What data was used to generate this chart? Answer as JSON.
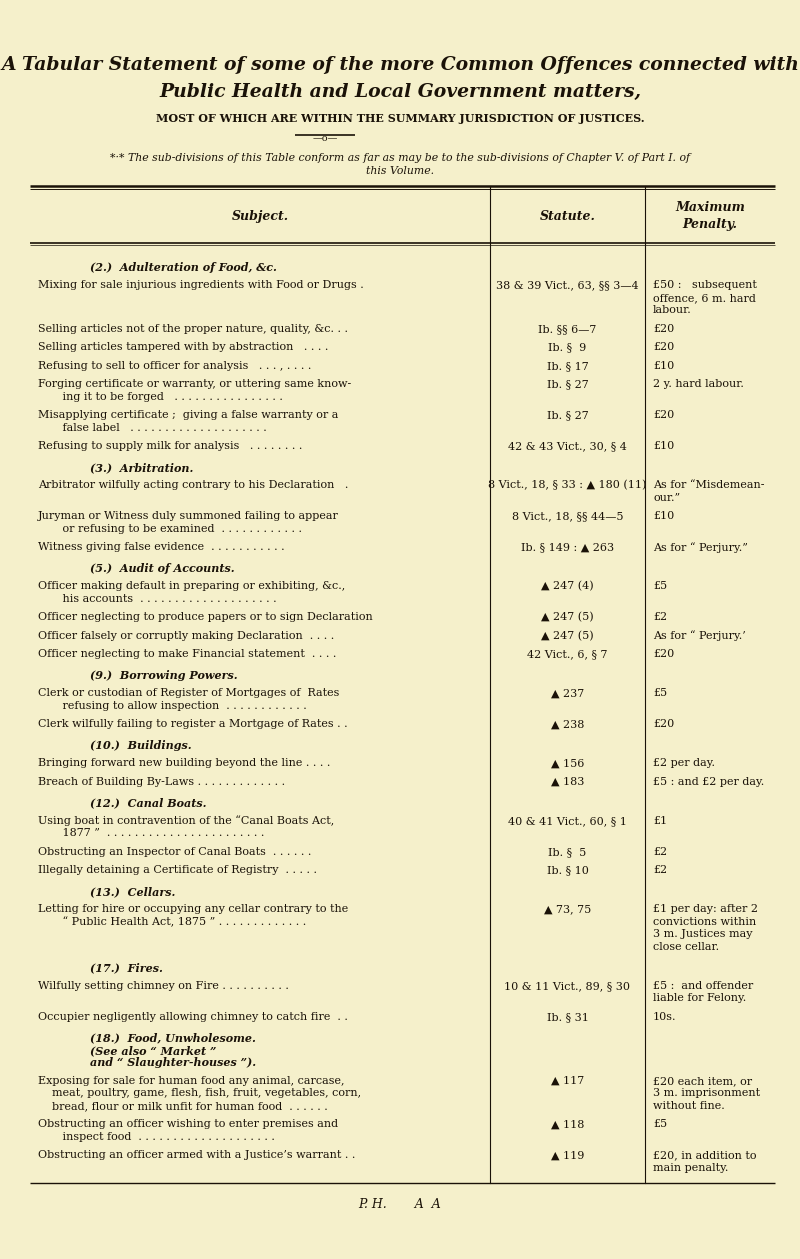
{
  "bg_color": "#f5f0cb",
  "title_line1": "A Tabular Statement of some of the more Common Offences connected with",
  "title_line2": "Public Health and Local Government matters,",
  "subtitle": "MOST OF WHICH ARE WITHIN THE SUMMARY JURISDICTION OF JUSTICES.",
  "footnote_line1": "*·* The sub-divisions of this Table conform as far as may be to the sub-divisions of Chapter V. of Part I. of",
  "footnote_line2": "this Volume.",
  "col_header1": "Subject.",
  "col_header2": "Statute.",
  "col_header3": "Maximum\nPenalty.",
  "rows": [
    {
      "subject": "(2.)  Adulteration of Food, &c.",
      "statute": "",
      "penalty": "",
      "type": "section"
    },
    {
      "subject": "Mixing for sale injurious ingredients with Food or Drugs .",
      "statute": "38 & 39 Vict., 63, §§ 3—4",
      "penalty": "£50 :   subsequent\noffence, 6 m. hard\nlabour.",
      "type": "row",
      "subj_lines": 1,
      "pen_lines": 3
    },
    {
      "subject": "Selling articles not of the proper nature, quality, &c. . .",
      "statute": "Ib. §§ 6—7",
      "penalty": "£20",
      "type": "row",
      "subj_lines": 1,
      "pen_lines": 1
    },
    {
      "subject": "Selling articles tampered with by abstraction   . . . .",
      "statute": "Ib. §  9",
      "penalty": "£20",
      "type": "row",
      "subj_lines": 1,
      "pen_lines": 1
    },
    {
      "subject": "Refusing to sell to officer for analysis   . . . , . . . .",
      "statute": "Ib. § 17",
      "penalty": "£10",
      "type": "row",
      "subj_lines": 1,
      "pen_lines": 1
    },
    {
      "subject": "Forging certificate or warranty, or uttering same know-\n   ing it to be forged   . . . . . . . . . . . . . . . .",
      "statute": "Ib. § 27",
      "penalty": "2 y. hard labour.",
      "type": "row2",
      "subj_lines": 2,
      "pen_lines": 1
    },
    {
      "subject": "Misapplying certificate ;  giving a false warranty or a\n   false label   . . . . . . . . . . . . . . . . . . . .",
      "statute": "Ib. § 27",
      "penalty": "£20",
      "type": "row2",
      "subj_lines": 2,
      "pen_lines": 1
    },
    {
      "subject": "Refusing to supply milk for analysis   . . . . . . . .",
      "statute": "42 & 43 Vict., 30, § 4",
      "penalty": "£10",
      "type": "row",
      "subj_lines": 1,
      "pen_lines": 1
    },
    {
      "subject": "(3.)  Arbitration.",
      "statute": "",
      "penalty": "",
      "type": "section"
    },
    {
      "subject": "Arbitrator wilfully acting contrary to his Declaration   .",
      "statute": "8 Vict., 18, § 33 : ▲ 180 (11)",
      "penalty": "As for “Misdemean-\nour.”",
      "type": "row",
      "subj_lines": 1,
      "pen_lines": 2
    },
    {
      "subject": "Juryman or Witness duly summoned failing to appear\n   or refusing to be examined  . . . . . . . . . . . .",
      "statute": "8 Vict., 18, §§ 44—5",
      "penalty": "£10",
      "type": "row2",
      "subj_lines": 2,
      "pen_lines": 1
    },
    {
      "subject": "Witness giving false evidence  . . . . . . . . . . .",
      "statute": "Ib. § 149 : ▲ 263",
      "penalty": "As for “ Perjury.”",
      "type": "row",
      "subj_lines": 1,
      "pen_lines": 1
    },
    {
      "subject": "(5.)  Audit of Accounts.",
      "statute": "",
      "penalty": "",
      "type": "section"
    },
    {
      "subject": "Officer making default in preparing or exhibiting, &c.,\n   his accounts  . . . . . . . . . . . . . . . . . . . .",
      "statute": "▲ 247 (4)",
      "penalty": "£5",
      "type": "row2",
      "subj_lines": 2,
      "pen_lines": 1
    },
    {
      "subject": "Officer neglecting to produce papers or to sign Declaration",
      "statute": "▲ 247 (5)",
      "penalty": "£2",
      "type": "row",
      "subj_lines": 1,
      "pen_lines": 1
    },
    {
      "subject": "Officer falsely or corruptly making Declaration  . . . .",
      "statute": "▲ 247 (5)",
      "penalty": "As for “ Perjury.’",
      "type": "row",
      "subj_lines": 1,
      "pen_lines": 1
    },
    {
      "subject": "Officer neglecting to make Financial statement  . . . .",
      "statute": "42 Vict., 6, § 7",
      "penalty": "£20",
      "type": "row",
      "subj_lines": 1,
      "pen_lines": 1
    },
    {
      "subject": "(9.)  Borrowing Powers.",
      "statute": "",
      "penalty": "",
      "type": "section"
    },
    {
      "subject": "Clerk or custodian of Register of Mortgages of  Rates\n   refusing to allow inspection  . . . . . . . . . . . .",
      "statute": "▲ 237",
      "penalty": "£5",
      "type": "row2",
      "subj_lines": 2,
      "pen_lines": 1
    },
    {
      "subject": "Clerk wilfully failing to register a Mortgage of Rates . .",
      "statute": "▲ 238",
      "penalty": "£20",
      "type": "row",
      "subj_lines": 1,
      "pen_lines": 1
    },
    {
      "subject": "(10.)  Buildings.",
      "statute": "",
      "penalty": "",
      "type": "section"
    },
    {
      "subject": "Bringing forward new building beyond the line . . . .",
      "statute": "▲ 156",
      "penalty": "£2 per day.",
      "type": "row",
      "subj_lines": 1,
      "pen_lines": 1
    },
    {
      "subject": "Breach of Building By-Laws . . . . . . . . . . . . .",
      "statute": "▲ 183",
      "penalty": "£5 : and £2 per day.",
      "type": "row",
      "subj_lines": 1,
      "pen_lines": 1
    },
    {
      "subject": "(12.)  Canal Boats.",
      "statute": "",
      "penalty": "",
      "type": "section"
    },
    {
      "subject": "Using boat in contravention of the “Canal Boats Act,\n   1877 ”  . . . . . . . . . . . . . . . . . . . . . . .",
      "statute": "40 & 41 Vict., 60, § 1",
      "penalty": "£1",
      "type": "row2",
      "subj_lines": 2,
      "pen_lines": 1
    },
    {
      "subject": "Obstructing an Inspector of Canal Boats  . . . . . .",
      "statute": "Ib. §  5",
      "penalty": "£2",
      "type": "row",
      "subj_lines": 1,
      "pen_lines": 1
    },
    {
      "subject": "Illegally detaining a Certificate of Registry  . . . . .",
      "statute": "Ib. § 10",
      "penalty": "£2",
      "type": "row",
      "subj_lines": 1,
      "pen_lines": 1
    },
    {
      "subject": "(13.)  Cellars.",
      "statute": "",
      "penalty": "",
      "type": "section"
    },
    {
      "subject": "Letting for hire or occupying any cellar contrary to the\n   “ Public Health Act, 1875 ” . . . . . . . . . . . . .",
      "statute": "▲ 73, 75",
      "penalty": "£1 per day: after 2\nconvictions within\n3 m. Justices may\nclose cellar.",
      "type": "row2",
      "subj_lines": 2,
      "pen_lines": 4
    },
    {
      "subject": "(17.)  Fires.",
      "statute": "",
      "penalty": "",
      "type": "section"
    },
    {
      "subject": "Wilfully setting chimney on Fire . . . . . . . . . .",
      "statute": "10 & 11 Vict., 89, § 30",
      "penalty": "£5 :  and offender\nliable for Felony.",
      "type": "row",
      "subj_lines": 1,
      "pen_lines": 2
    },
    {
      "subject": "Occupier negligently allowing chimney to catch fire  . .",
      "statute": "Ib. § 31",
      "penalty": "10s.",
      "type": "row",
      "subj_lines": 1,
      "pen_lines": 1
    },
    {
      "subject": "(18.)  Food, Unwholesome.\n(See also “ Market ”\nand “ Slaughter-houses ”).",
      "statute": "",
      "penalty": "",
      "type": "section"
    },
    {
      "subject": "Exposing for sale for human food any animal, carcase,\nmeat, poultry, game, flesh, fish, fruit, vegetables, corn,\nbread, flour or milk unfit for human food  . . . . . .",
      "statute": "▲ 117",
      "penalty": "£20 each item, or\n3 m. imprisonment\nwithout fine.",
      "type": "row3",
      "subj_lines": 3,
      "pen_lines": 3
    },
    {
      "subject": "Obstructing an officer wishing to enter premises and\n   inspect food  . . . . . . . . . . . . . . . . . . . .",
      "statute": "▲ 118",
      "penalty": "£5",
      "type": "row2",
      "subj_lines": 2,
      "pen_lines": 1
    },
    {
      "subject": "Obstructing an officer armed with a Justice’s warrant . .",
      "statute": "▲ 119",
      "penalty": "£20, in addition to\nmain penalty.",
      "type": "row",
      "subj_lines": 1,
      "pen_lines": 2
    }
  ],
  "footer": "P. H.       A  A"
}
